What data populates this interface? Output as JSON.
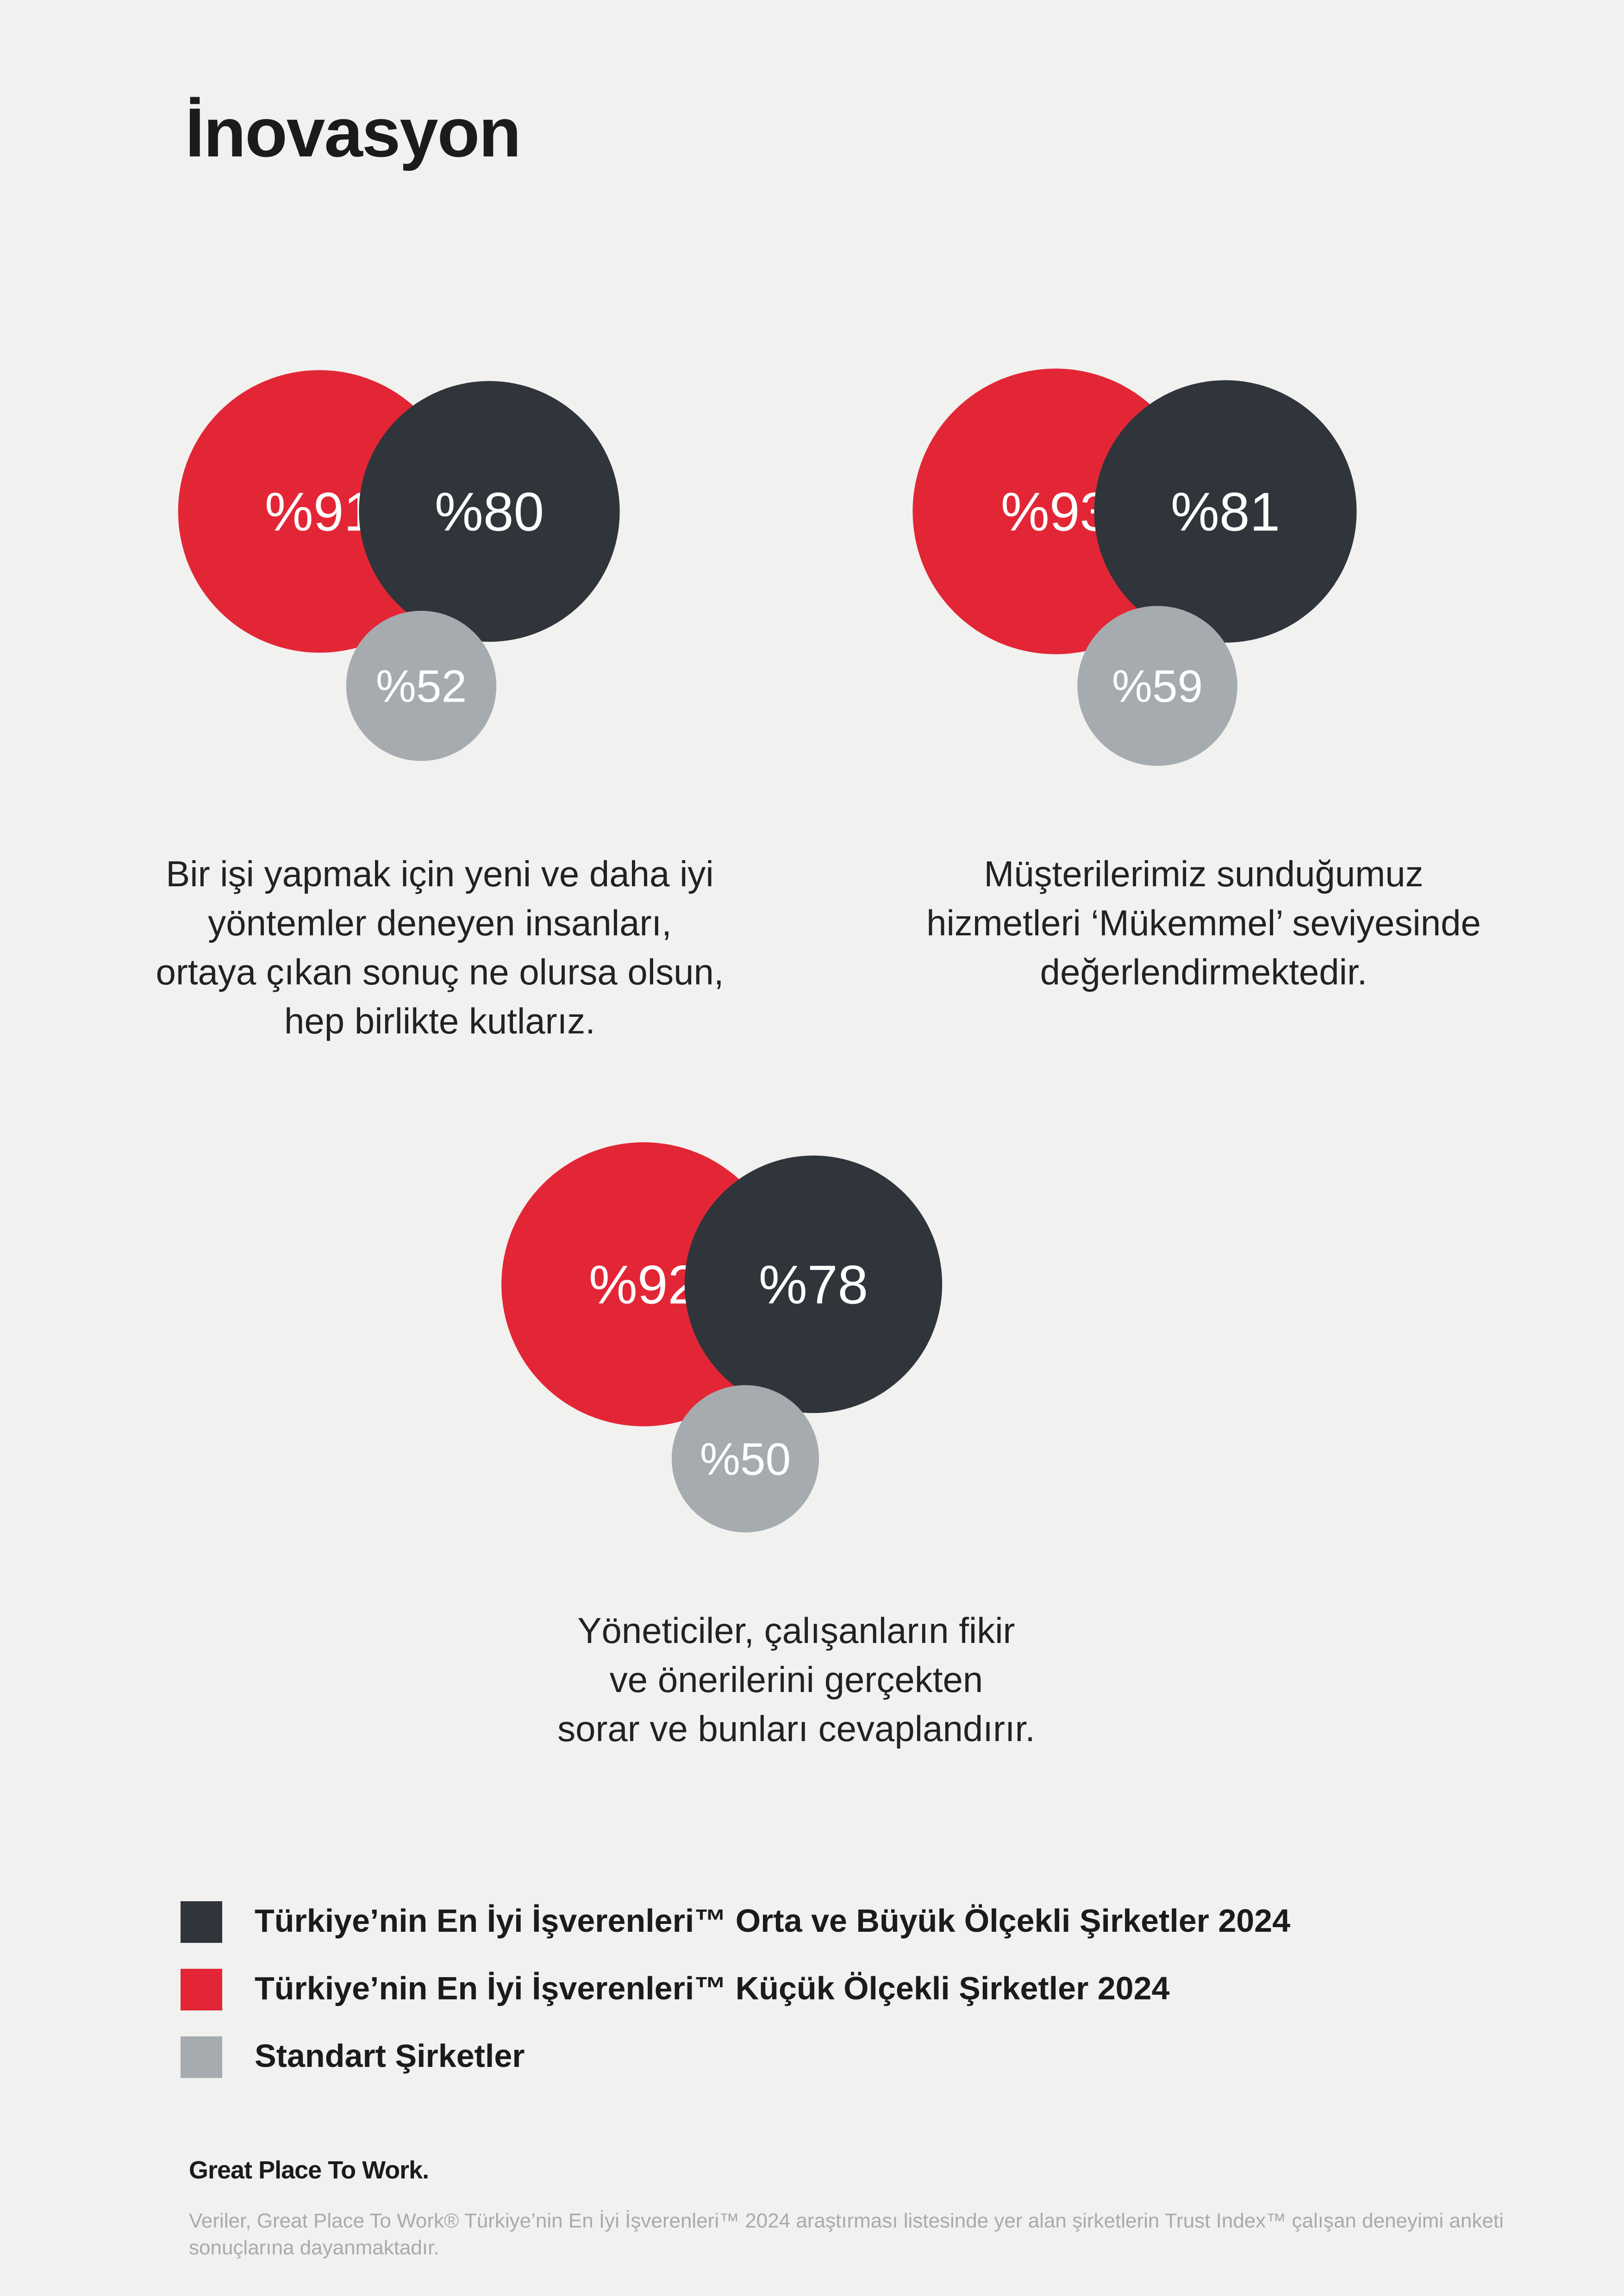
{
  "title": "İnovasyon",
  "colors": {
    "small": "#e32636",
    "midlarge": "#30353b",
    "standard": "#a6abaf",
    "background": "#f1f1ef"
  },
  "chart_data": [
    {
      "type": "bubble",
      "caption": "Bir işi yapmak için yeni ve daha iyi\nyöntemler deneyen insanları,\nortaya çıkan sonuç ne olursa olsun,\nhep birlikte kutlarız.",
      "series": [
        {
          "group": "small",
          "value": 91,
          "label": "%91"
        },
        {
          "group": "midlarge",
          "value": 80,
          "label": "%80"
        },
        {
          "group": "standard",
          "value": 52,
          "label": "%52"
        }
      ]
    },
    {
      "type": "bubble",
      "caption": "Müşterilerimiz sunduğumuz\nhizmetleri ‘Mükemmel’ seviyesinde\ndeğerlendirmektedir.",
      "series": [
        {
          "group": "small",
          "value": 93,
          "label": "%93"
        },
        {
          "group": "midlarge",
          "value": 81,
          "label": "%81"
        },
        {
          "group": "standard",
          "value": 59,
          "label": "%59"
        }
      ]
    },
    {
      "type": "bubble",
      "caption": "Yöneticiler, çalışanların fikir\nve önerilerini gerçekten\nsorar ve bunları cevaplandırır.",
      "series": [
        {
          "group": "small",
          "value": 92,
          "label": "%92"
        },
        {
          "group": "midlarge",
          "value": 78,
          "label": "%78"
        },
        {
          "group": "standard",
          "value": 50,
          "label": "%50"
        }
      ]
    }
  ],
  "legend": [
    {
      "group": "midlarge",
      "label": "Türkiye’nin En İyi İşverenleri™ Orta ve Büyük Ölçekli Şirketler 2024"
    },
    {
      "group": "small",
      "label": "Türkiye’nin En İyi İşverenleri™ Küçük Ölçekli Şirketler 2024"
    },
    {
      "group": "standard",
      "label": "Standart Şirketler"
    }
  ],
  "brand": "Great Place To Work.",
  "footnote": "Veriler, Great Place To Work® Türkiye’nin En İyi İşverenleri™ 2024 araştırması listesinde yer alan şirketlerin Trust Index™ çalışan deneyimi anketi sonuçlarına dayanmaktadır."
}
